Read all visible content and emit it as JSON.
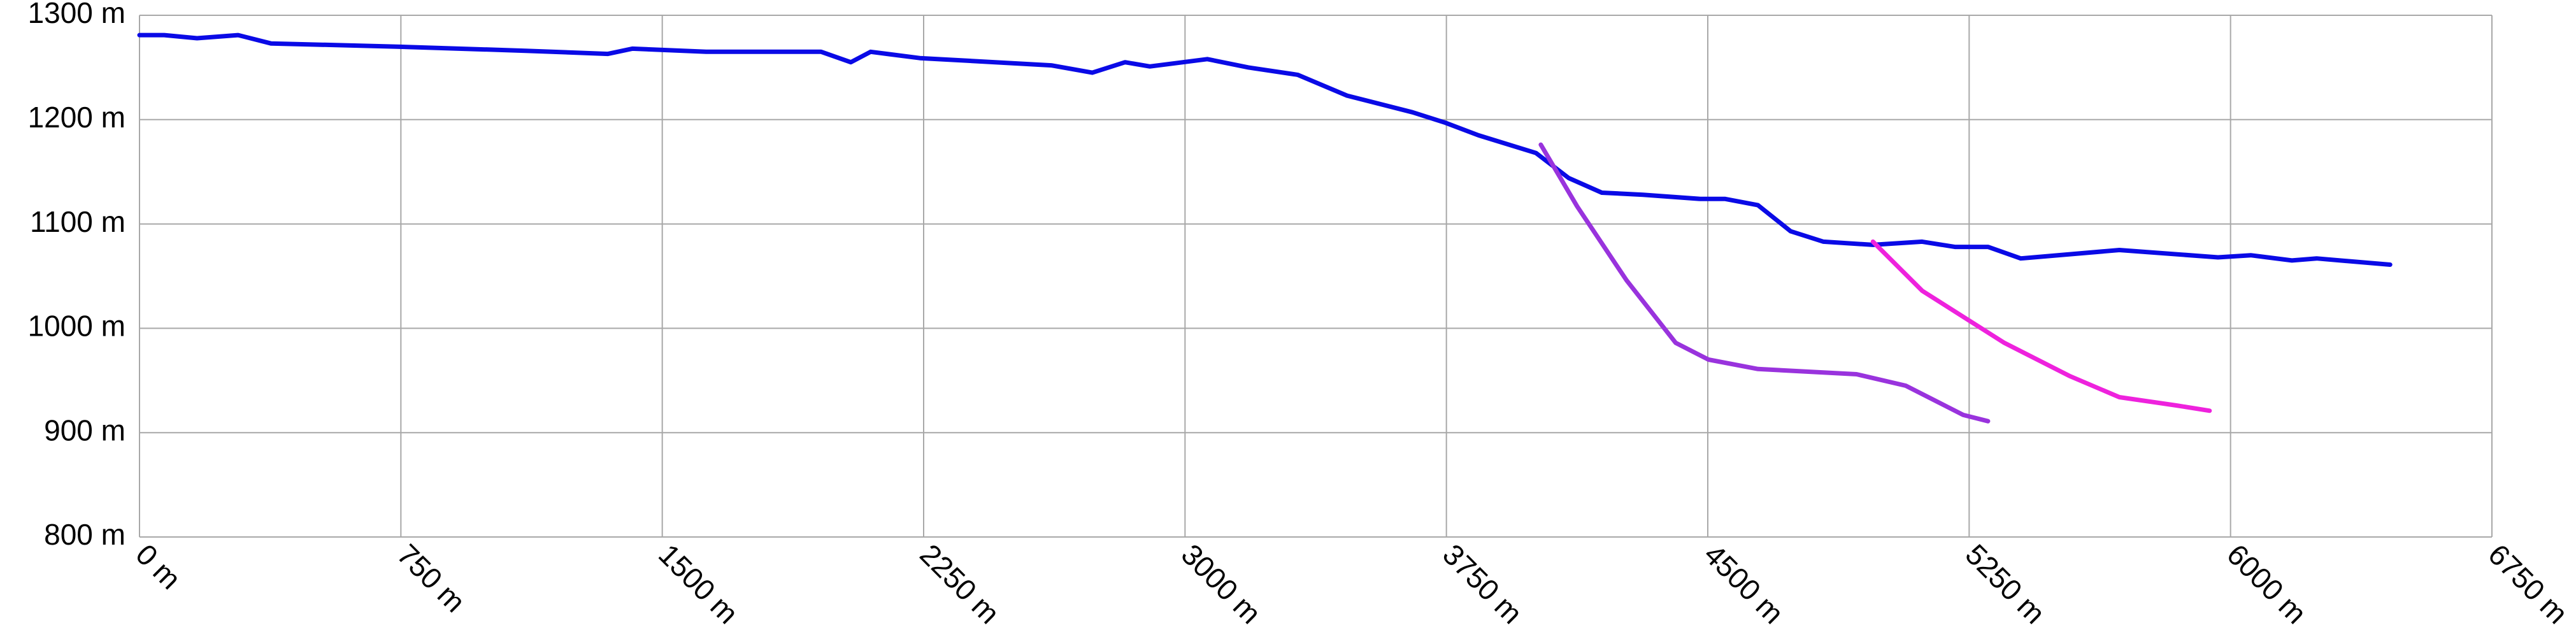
{
  "chart_data": {
    "type": "line",
    "series": [
      {
        "color": "#0a0ae6",
        "x": [
          0,
          71,
          165,
          283,
          377,
          730,
          1108,
          1344,
          1414,
          1626,
          1956,
          2041,
          2098,
          2239,
          2616,
          2734,
          2828,
          2899,
          3064,
          3182,
          3323,
          3465,
          3653,
          3747,
          3842,
          4007,
          4101,
          4196,
          4314,
          4479,
          4550,
          4644,
          4738,
          4832,
          4974,
          5115,
          5209,
          5304,
          5398,
          5681,
          5964,
          6058,
          6176,
          6247,
          6458
        ],
        "values": [
          1281,
          1281,
          1278,
          1281,
          1273,
          1270,
          1266,
          1263,
          1268,
          1265,
          1265,
          1255,
          1265,
          1259,
          1252,
          1245,
          1255,
          1251,
          1258,
          1250,
          1243,
          1223,
          1207,
          1197,
          1185,
          1168,
          1144,
          1130,
          1128,
          1124,
          1124,
          1118,
          1093,
          1083,
          1080,
          1083,
          1078,
          1078,
          1067,
          1075,
          1068,
          1070,
          1065,
          1067,
          1061
        ]
      },
      {
        "color": "#9933dd",
        "x": [
          4021,
          4125,
          4267,
          4408,
          4502,
          4644,
          4927,
          5068,
          5233,
          5304
        ],
        "values": [
          1176,
          1117,
          1046,
          986,
          970,
          961,
          956,
          945,
          917,
          911
        ]
      },
      {
        "color": "#ee22dd",
        "x": [
          4974,
          5115,
          5351,
          5540,
          5681,
          5846,
          5940
        ],
        "values": [
          1083,
          1036,
          986,
          954,
          934,
          926,
          921
        ]
      }
    ],
    "xlim": [
      0,
      6750
    ],
    "xticks": [
      {
        "value": 0,
        "label": "0 m"
      },
      {
        "value": 750,
        "label": "750 m"
      },
      {
        "value": 1500,
        "label": "1500 m"
      },
      {
        "value": 2250,
        "label": "2250 m"
      },
      {
        "value": 3000,
        "label": "3000 m"
      },
      {
        "value": 3750,
        "label": "3750 m"
      },
      {
        "value": 4500,
        "label": "4500 m"
      },
      {
        "value": 5250,
        "label": "5250 m"
      },
      {
        "value": 6000,
        "label": "6000 m"
      },
      {
        "value": 6750,
        "label": "6750 m"
      }
    ],
    "ylim": [
      800,
      1300
    ],
    "yticks": [
      {
        "value": 800,
        "label": "800 m"
      },
      {
        "value": 900,
        "label": "900 m"
      },
      {
        "value": 1000,
        "label": "1000 m"
      },
      {
        "value": 1100,
        "label": "1100 m"
      },
      {
        "value": 1200,
        "label": "1200 m"
      },
      {
        "value": 1300,
        "label": "1300 m"
      }
    ],
    "grid": true
  }
}
